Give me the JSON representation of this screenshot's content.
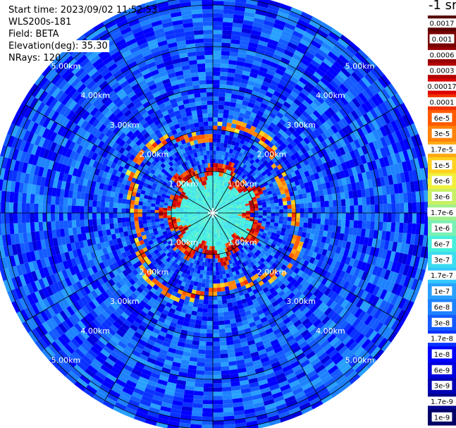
{
  "info": {
    "start_time": "Start time: 2023/09/02 11:52:53",
    "instrument": "WLS200s-181",
    "field": "Field: BETA",
    "elevation": "Elevation(deg): 35.30",
    "nrays": "NRays: 120"
  },
  "colorbar": {
    "title": "-1 sr",
    "labels": [
      "0.0017",
      "0.001",
      "0.0006",
      "0.0003",
      "0.00017",
      "0.0001",
      "6e-5",
      "3e-5",
      "1.7e-5",
      "1e-5",
      "6e-6",
      "3e-6",
      "1.7e-6",
      "1e-6",
      "6e-7",
      "3e-7",
      "1.7e-7",
      "1e-7",
      "6e-8",
      "3e-8",
      "1.7e-8",
      "1e-8",
      "6e-9",
      "3e-9",
      "1.7e-9",
      "1e-9"
    ]
  },
  "chart_data": {
    "type": "heatmap",
    "projection": "polar",
    "field": "BETA",
    "units": "-1 sr",
    "nrays": 120,
    "range_rings_km": [
      1,
      2,
      3,
      4,
      5
    ],
    "ring_labels": [
      "1.00km",
      "2.00km",
      "3.00km",
      "4.00km",
      "5.00km"
    ],
    "max_range_km": 5.2,
    "color_scale": "log",
    "scale_min": 1e-09,
    "scale_max": 0.0017,
    "background_level": 3e-08,
    "features": [
      {
        "description": "high backscatter ring",
        "range_km": 1.0,
        "value": 0.0003
      },
      {
        "description": "high backscatter ring",
        "range_km": 2.0,
        "value": 0.0001
      }
    ]
  }
}
